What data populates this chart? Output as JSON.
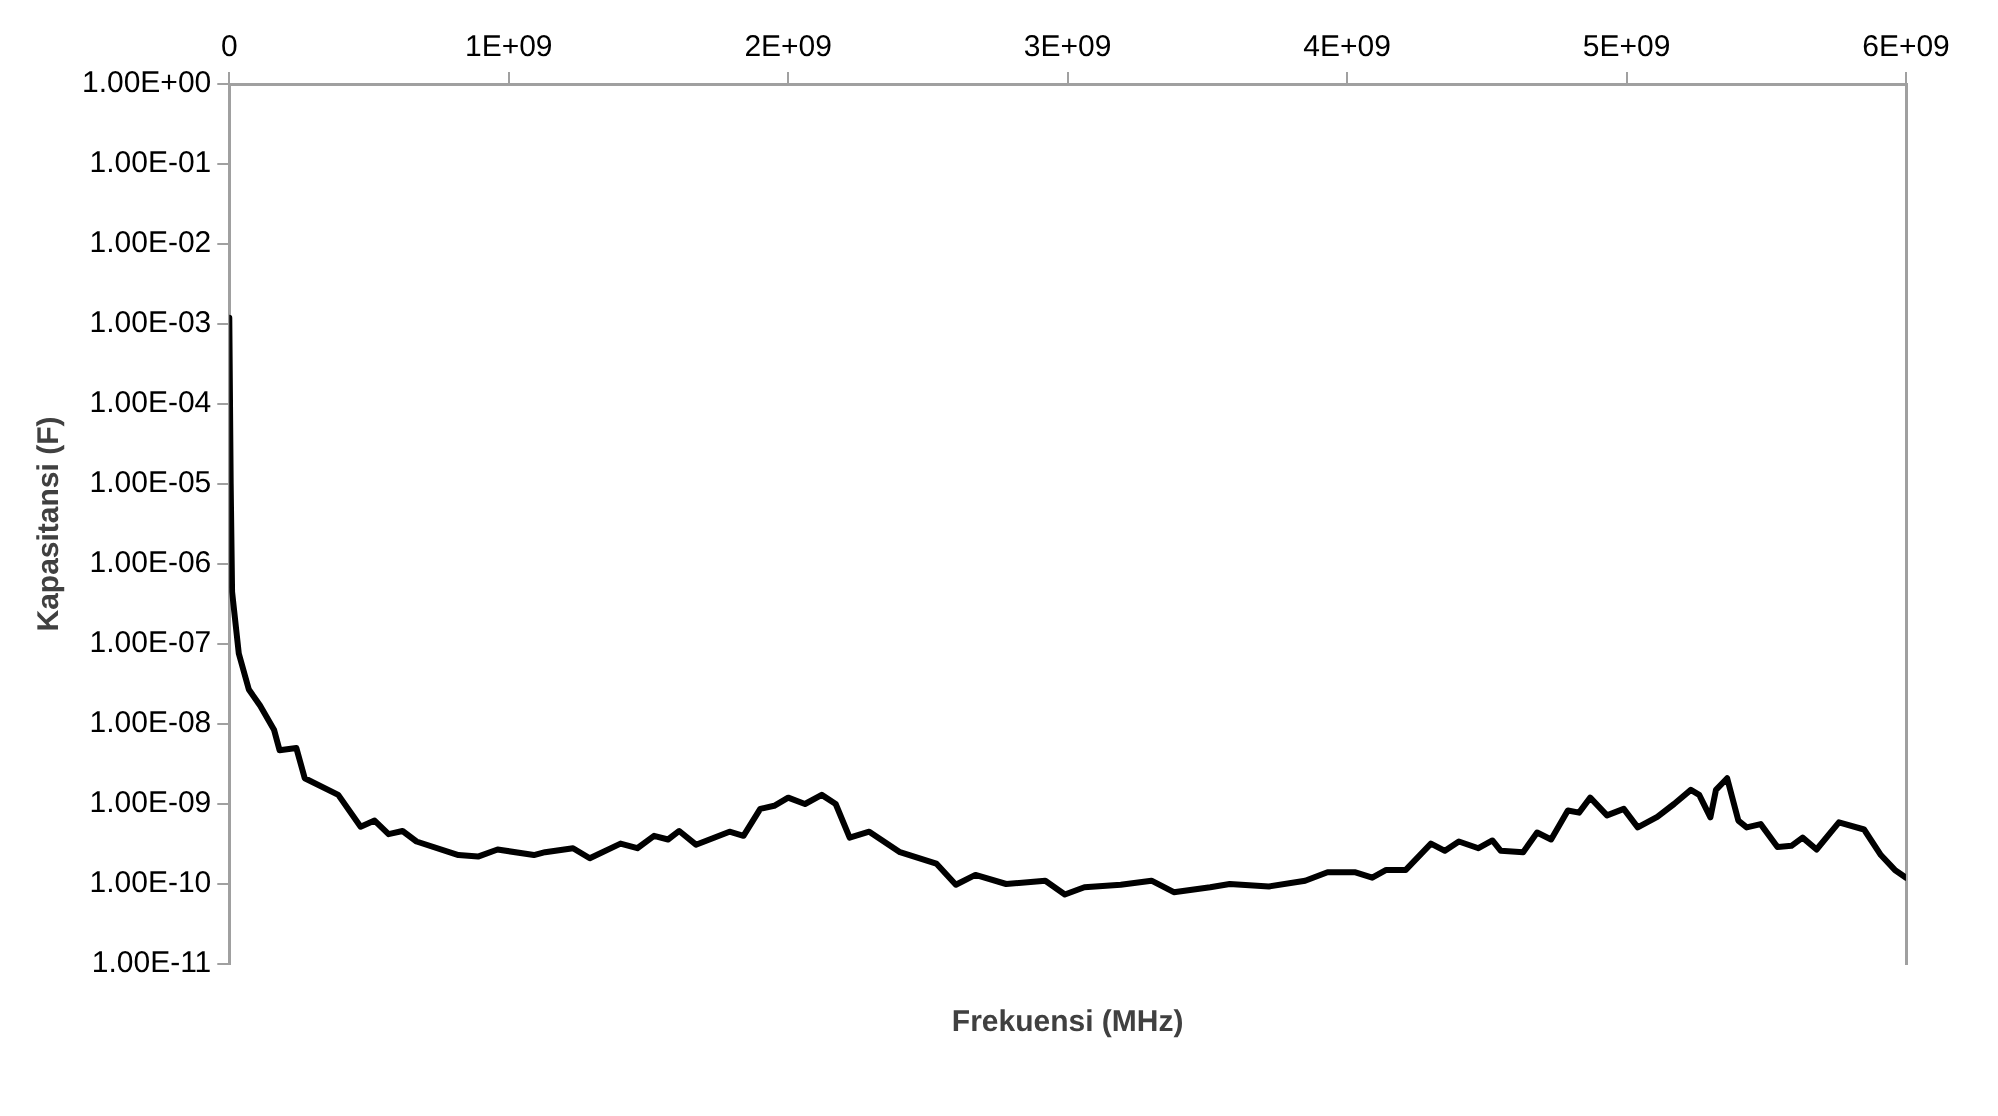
{
  "chart_data": {
    "type": "line",
    "xlabel": "Frekuensi (MHz)",
    "ylabel": "Kapasitansi (F)",
    "log": "y",
    "grid": false,
    "legend": false,
    "marker": "none",
    "line_style": "solid",
    "xlim": [
      0,
      6000000000
    ],
    "xticks": [
      0,
      {
        "value": 1000000000,
        "label": "1E+09"
      },
      {
        "value": 2000000000,
        "label": "2E+09"
      },
      {
        "value": 3000000000,
        "label": "3E+09"
      },
      {
        "value": 4000000000,
        "label": "4E+09"
      },
      {
        "value": 5000000000,
        "label": "5E+09"
      },
      {
        "value": 6000000000,
        "label": "6E+09"
      }
    ],
    "ylim": [
      1e-11,
      1
    ],
    "yticks": [
      {
        "value": 1e-11,
        "label": "1.00E-11"
      },
      {
        "value": 1e-10,
        "label": "1.00E-10"
      },
      {
        "value": 1e-09,
        "label": "1.00E-09"
      },
      {
        "value": 1e-08,
        "label": "1.00E-08"
      },
      {
        "value": 1e-07,
        "label": "1.00E-07"
      },
      {
        "value": 1e-06,
        "label": "1.00E-06"
      },
      {
        "value": 1e-05,
        "label": "1.00E-05"
      },
      {
        "value": 0.0001,
        "label": "1.00E-04"
      },
      {
        "value": 0.001,
        "label": "1.00E-03"
      },
      {
        "value": 0.01,
        "label": "1.00E-02"
      },
      {
        "value": 0.1,
        "label": "1.00E-01"
      },
      {
        "value": 1,
        "label": "1.00E+00"
      }
    ],
    "x": [
      0,
      5000000,
      10000000,
      34000000,
      70000000,
      110000000,
      160000000,
      180000000,
      240000000,
      270000000,
      390000000,
      470000000,
      520000000,
      570000000,
      620000000,
      670000000,
      820000000,
      890000000,
      960000000,
      1090000000,
      1130000000,
      1230000000,
      1290000000,
      1400000000,
      1460000000,
      1520000000,
      1570000000,
      1610000000,
      1670000000,
      1790000000,
      1840000000,
      1900000000,
      1950000000,
      2000000000,
      2060000000,
      2120000000,
      2170000000,
      2220000000,
      2290000000,
      2400000000,
      2530000000,
      2600000000,
      2670000000,
      2780000000,
      2920000000,
      2990000000,
      3060000000,
      3190000000,
      3300000000,
      3380000000,
      3510000000,
      3580000000,
      3720000000,
      3850000000,
      3930000000,
      4030000000,
      4090000000,
      4140000000,
      4210000000,
      4300000000,
      4350000000,
      4400000000,
      4470000000,
      4520000000,
      4550000000,
      4630000000,
      4680000000,
      4730000000,
      4790000000,
      4830000000,
      4870000000,
      4930000000,
      4990000000,
      5040000000,
      5110000000,
      5170000000,
      5230000000,
      5260000000,
      5300000000,
      5320000000,
      5360000000,
      5400000000,
      5430000000,
      5480000000,
      5540000000,
      5590000000,
      5630000000,
      5680000000,
      5760000000,
      5850000000,
      5910000000,
      5960000000,
      6000000000
    ],
    "series": [
      {
        "color": "#000000",
        "values": [
          0.0012,
          1e-05,
          4.5e-07,
          7.6e-08,
          2.7e-08,
          1.7e-08,
          8.5e-09,
          4.7e-09,
          5e-09,
          2.1e-09,
          1.3e-09,
          5.2e-10,
          6.2e-10,
          4.2e-10,
          4.6e-10,
          3.4e-10,
          2.3e-10,
          2.2e-10,
          2.7e-10,
          2.3e-10,
          2.5e-10,
          2.8e-10,
          2.1e-10,
          3.2e-10,
          2.8e-10,
          4e-10,
          3.6e-10,
          4.6e-10,
          3.1e-10,
          4.5e-10,
          4e-10,
          8.7e-10,
          9.5e-10,
          1.2e-09,
          1e-09,
          1.3e-09,
          1e-09,
          3.8e-10,
          4.5e-10,
          2.5e-10,
          1.8e-10,
          9.8e-11,
          1.3e-10,
          1e-10,
          1.1e-10,
          7.4e-11,
          9.1e-11,
          9.8e-11,
          1.1e-10,
          7.9e-11,
          9.1e-11,
          1e-10,
          9.3e-11,
          1.1e-10,
          1.4e-10,
          1.4e-10,
          1.2e-10,
          1.5e-10,
          1.5e-10,
          3.2e-10,
          2.6e-10,
          3.4e-10,
          2.8e-10,
          3.5e-10,
          2.6e-10,
          2.5e-10,
          4.4e-10,
          3.6e-10,
          8.3e-10,
          7.8e-10,
          1.2e-09,
          7.2e-10,
          8.7e-10,
          5.1e-10,
          6.9e-10,
          1e-09,
          1.5e-09,
          1.3e-09,
          6.8e-10,
          1.5e-09,
          2.1e-09,
          6.2e-10,
          5.1e-10,
          5.6e-10,
          2.9e-10,
          3e-10,
          3.8e-10,
          2.7e-10,
          5.9e-10,
          4.8e-10,
          2.3e-10,
          1.5e-10,
          1.2e-10
        ]
      }
    ]
  }
}
